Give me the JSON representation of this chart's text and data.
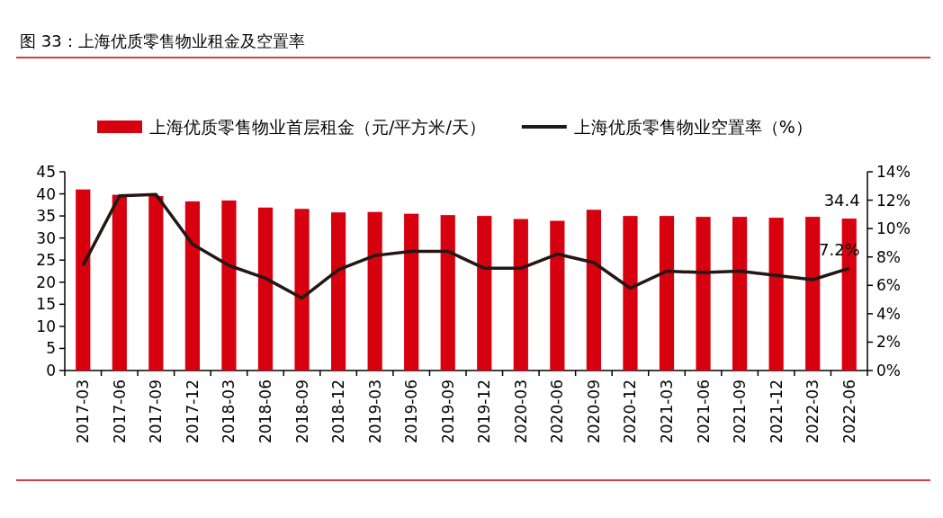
{
  "chart_data": {
    "type": "bar",
    "title": "图 33：上海优质零售物业租金及空置率",
    "categories": [
      "2017-03",
      "2017-06",
      "2017-09",
      "2017-12",
      "2018-03",
      "2018-06",
      "2018-09",
      "2018-12",
      "2019-03",
      "2019-06",
      "2019-09",
      "2019-12",
      "2020-03",
      "2020-06",
      "2020-09",
      "2020-12",
      "2021-03",
      "2021-06",
      "2021-09",
      "2021-12",
      "2022-03",
      "2022-06"
    ],
    "series": [
      {
        "name": "上海优质零售物业首层租金（元/平方米/天）",
        "color": "#d7000f",
        "values": [
          41.0,
          39.8,
          39.5,
          38.3,
          38.5,
          36.9,
          36.6,
          35.8,
          35.9,
          35.5,
          35.2,
          35.0,
          34.3,
          33.9,
          36.4,
          35.0,
          35.0,
          34.8,
          34.8,
          34.6,
          34.8,
          34.4
        ],
        "value_labels": [
          null,
          null,
          null,
          null,
          null,
          null,
          null,
          null,
          null,
          null,
          null,
          null,
          null,
          null,
          null,
          null,
          null,
          null,
          null,
          null,
          null,
          "34.4"
        ]
      },
      {
        "name": "上海优质零售物业空置率（%）",
        "type": "line",
        "axis": "y2",
        "color": "#231815",
        "values": [
          7.4,
          12.3,
          12.4,
          8.9,
          7.4,
          6.5,
          5.1,
          7.1,
          8.1,
          8.4,
          8.4,
          7.2,
          7.2,
          8.2,
          7.6,
          5.8,
          7.0,
          6.9,
          7.0,
          6.7,
          6.4,
          7.2
        ],
        "value_labels": [
          null,
          null,
          null,
          null,
          null,
          null,
          null,
          null,
          null,
          null,
          null,
          null,
          null,
          null,
          null,
          null,
          null,
          null,
          null,
          null,
          null,
          "7.2%"
        ]
      }
    ],
    "ylim": [
      0,
      45
    ],
    "yticks": [
      0,
      5,
      10,
      15,
      20,
      25,
      30,
      35,
      40,
      45
    ],
    "y2lim": [
      0,
      14
    ],
    "y2ticks": [
      {
        "value": 0,
        "label": "0%"
      },
      {
        "value": 2,
        "label": "2%"
      },
      {
        "value": 4,
        "label": "4%"
      },
      {
        "value": 6,
        "label": "6%"
      },
      {
        "value": 8,
        "label": "8%"
      },
      {
        "value": 10,
        "label": "10%"
      },
      {
        "value": 12,
        "label": "12%"
      },
      {
        "value": 14,
        "label": "14%"
      }
    ],
    "legend": "top",
    "grid": false,
    "marker": "none",
    "line_style": "solid"
  }
}
